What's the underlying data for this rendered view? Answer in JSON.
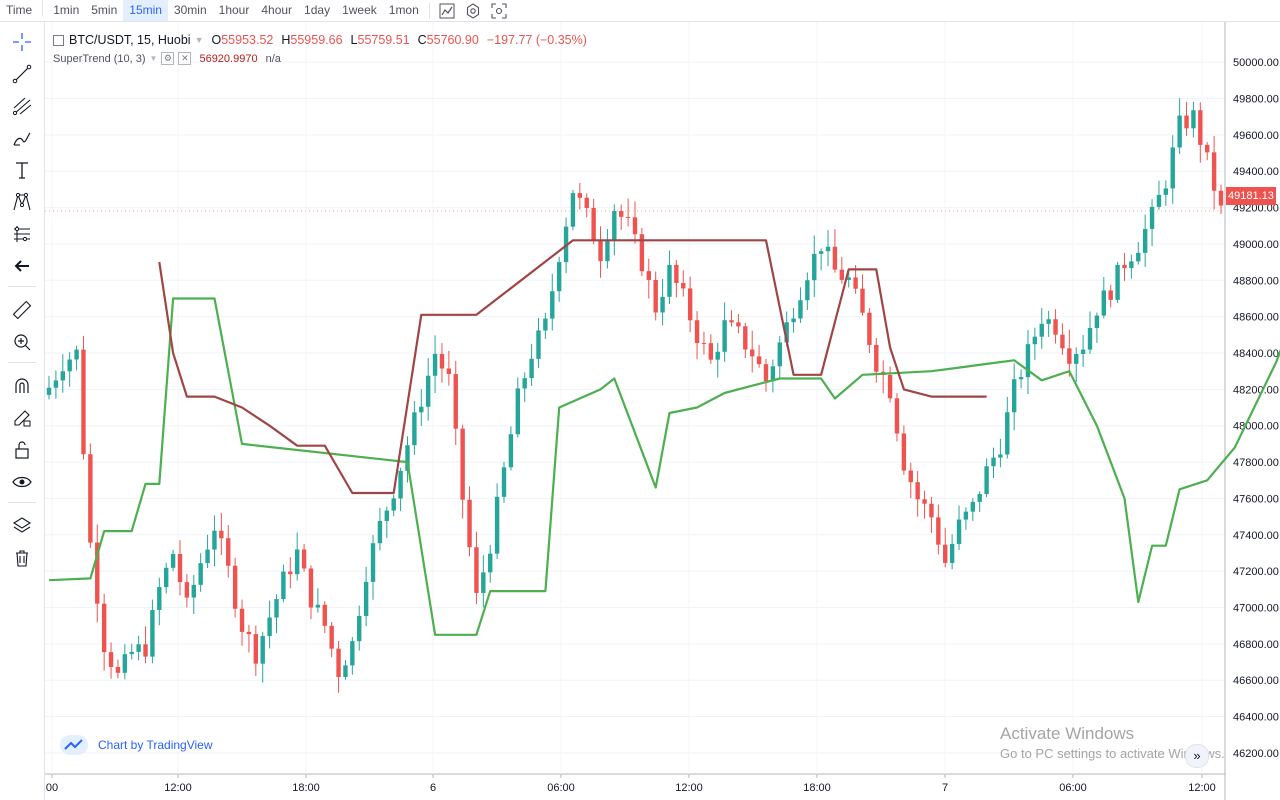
{
  "toolbar": {
    "timeframes": [
      "Time",
      "1min",
      "5min",
      "15min",
      "30min",
      "1hour",
      "4hour",
      "1day",
      "1week",
      "1mon"
    ],
    "active_timeframe": "15min"
  },
  "legend": {
    "symbol": "BTC/USDT, 15, Huobi",
    "open_label": "O",
    "open": "55953.52",
    "high_label": "H",
    "high": "55959.66",
    "low_label": "L",
    "low": "55759.51",
    "close_label": "C",
    "close": "55760.90",
    "change": "−197.77 (−0.35%)"
  },
  "indicator": {
    "name": "SuperTrend (10, 3)",
    "value": "56920.9970",
    "extra": "n/a"
  },
  "watermark": "Chart by TradingView",
  "os_notice": {
    "title": "Activate Windows",
    "subtitle": "Go to PC settings to activate Windows."
  },
  "last_price": "49181.13",
  "colors": {
    "up": "#26a69a",
    "down": "#ef5350",
    "supertrend_up": "#4caf50",
    "supertrend_down": "#a04545",
    "accent": "#2962ff"
  },
  "sidebar_icons": [
    "crosshair-icon",
    "trend-line-icon",
    "pitchfork-icon",
    "brush-icon",
    "text-icon",
    "pattern-icon",
    "prediction-icon",
    "back-arrow-icon",
    "ruler-icon",
    "zoom-in-icon",
    "magnet-icon",
    "lock-drawing-icon",
    "unlock-icon",
    "eye-icon",
    "layers-icon",
    "trash-icon"
  ],
  "chart_data": {
    "type": "candlestick",
    "y_axis_labels": [
      "50000.00",
      "49800.00",
      "49600.00",
      "49400.00",
      "49200.00",
      "49000.00",
      "48800.00",
      "48600.00",
      "48400.00",
      "48200.00",
      "48000.00",
      "47800.00",
      "47600.00",
      "47400.00",
      "47200.00",
      "47000.00",
      "46800.00",
      "46600.00",
      "46400.00",
      "46200.00"
    ],
    "x_axis_labels": [
      "00",
      "12:00",
      "18:00",
      "6",
      "06:00",
      "12:00",
      "18:00",
      "7",
      "06:00",
      "12:00"
    ],
    "ylim": [
      46150,
      50100
    ],
    "close_path": [
      48210,
      48350,
      48400,
      47350,
      46800,
      46620,
      46750,
      46780,
      47100,
      47300,
      47000,
      47250,
      47450,
      47200,
      46900,
      46750,
      46950,
      47150,
      47300,
      47050,
      46900,
      46650,
      46800,
      47200,
      47450,
      47650,
      47900,
      48150,
      48400,
      48250,
      47600,
      47050,
      47350,
      47750,
      48150,
      48400,
      48550,
      48950,
      49300,
      49150,
      48950,
      49200,
      49100,
      48900,
      48650,
      48850,
      48700,
      48500,
      48350,
      48550,
      48500,
      48400,
      48250,
      48450,
      48650,
      48850,
      49000,
      48850,
      48800,
      48600,
      48350,
      48200,
      47800,
      47600,
      47500,
      47250,
      47450,
      47550,
      47750,
      47900,
      48200,
      48400,
      48600,
      48550,
      48400,
      48450,
      48650,
      48750,
      48900,
      49000,
      49150,
      49350,
      49650,
      49700,
      49450,
      49180
    ],
    "supertrend_up": [
      [
        0,
        47150
      ],
      [
        3,
        47160
      ],
      [
        4,
        47420
      ],
      [
        6,
        47420
      ],
      [
        7,
        47680
      ],
      [
        8,
        47680
      ],
      [
        9,
        48700
      ],
      [
        12,
        48700
      ],
      [
        14,
        47900
      ],
      [
        26,
        47800
      ],
      [
        28,
        46850
      ],
      [
        31,
        46850
      ],
      [
        32,
        47090
      ],
      [
        36,
        47090
      ],
      [
        37,
        48100
      ],
      [
        40,
        48200
      ],
      [
        41,
        48260
      ],
      [
        44,
        47660
      ],
      [
        45,
        48070
      ],
      [
        47,
        48100
      ],
      [
        49,
        48180
      ],
      [
        51,
        48220
      ],
      [
        53,
        48260
      ],
      [
        56,
        48260
      ],
      [
        57,
        48150
      ],
      [
        59,
        48280
      ],
      [
        64,
        48300
      ],
      [
        66,
        48320
      ],
      [
        68,
        48340
      ],
      [
        70,
        48360
      ],
      [
        72,
        48250
      ],
      [
        74,
        48300
      ],
      [
        76,
        48000
      ],
      [
        78,
        47600
      ],
      [
        79,
        47030
      ],
      [
        80,
        47340
      ],
      [
        81,
        47340
      ],
      [
        82,
        47650
      ],
      [
        84,
        47700
      ],
      [
        86,
        47880
      ],
      [
        89,
        48350
      ],
      [
        90,
        48550
      ],
      [
        92,
        48820
      ],
      [
        94,
        48840
      ],
      [
        96,
        48840
      ]
    ],
    "supertrend_down": [
      [
        8,
        48900
      ],
      [
        9,
        48400
      ],
      [
        10,
        48160
      ],
      [
        12,
        48160
      ],
      [
        14,
        48100
      ],
      [
        16,
        48000
      ],
      [
        18,
        47890
      ],
      [
        20,
        47890
      ],
      [
        22,
        47630
      ],
      [
        25,
        47630
      ],
      [
        27,
        48610
      ],
      [
        30,
        48610
      ],
      [
        31,
        48610
      ],
      [
        38,
        49020
      ],
      [
        42,
        49020
      ],
      [
        44,
        49020
      ],
      [
        52,
        49020
      ],
      [
        54,
        48280
      ],
      [
        56,
        48280
      ],
      [
        58,
        48860
      ],
      [
        60,
        48860
      ],
      [
        61,
        48430
      ],
      [
        62,
        48200
      ],
      [
        64,
        48160
      ],
      [
        67,
        48160
      ],
      [
        68,
        48160
      ]
    ]
  }
}
